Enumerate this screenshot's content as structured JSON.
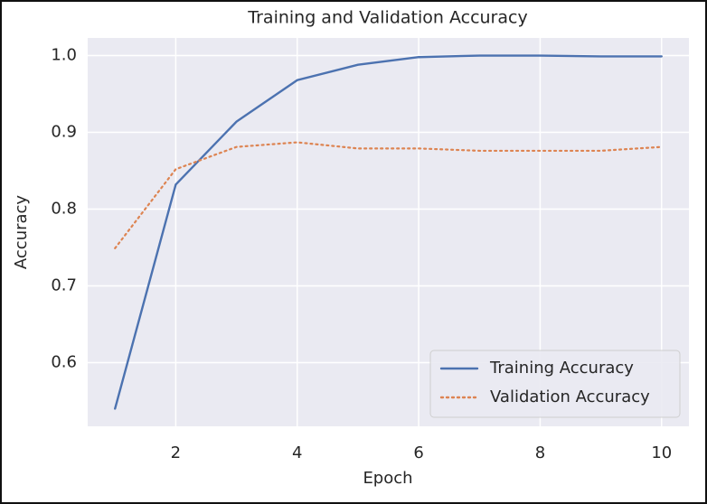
{
  "chart_data": {
    "type": "line",
    "title": "Training and Validation Accuracy",
    "x_label": "Epoch",
    "y_label": "Accuracy",
    "x": [
      1,
      2,
      3,
      4,
      5,
      6,
      7,
      8,
      9,
      10
    ],
    "series": [
      {
        "name": "Training Accuracy",
        "color": "#4c72b0",
        "style": "solid",
        "values": [
          0.54,
          0.832,
          0.914,
          0.968,
          0.988,
          0.998,
          1.0,
          1.0,
          0.999,
          0.999
        ]
      },
      {
        "name": "Validation Accuracy",
        "color": "#dd8452",
        "style": "dotted",
        "values": [
          0.749,
          0.852,
          0.881,
          0.887,
          0.879,
          0.879,
          0.876,
          0.876,
          0.876,
          0.881
        ]
      }
    ],
    "xlim": [
      0.55,
      10.45
    ],
    "xticks": [
      2,
      4,
      6,
      8,
      10
    ],
    "ylim": [
      0.517,
      1.023
    ],
    "yticks": [
      0.6,
      0.7,
      0.8,
      0.9,
      {
        "value": 1,
        "label": "1.0"
      }
    ],
    "grid": true,
    "legend": "lower right"
  }
}
